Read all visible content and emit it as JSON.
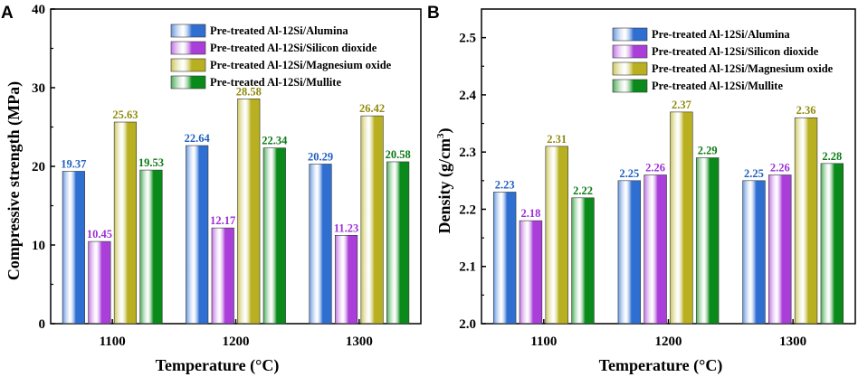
{
  "chart_data": [
    {
      "type": "bar",
      "panel": "A",
      "categories": [
        "1100",
        "1200",
        "1300"
      ],
      "series": [
        {
          "name": "Pre-treated Al-12Si/Alumina",
          "color": "#2f6fd1",
          "values": [
            19.37,
            22.64,
            20.29
          ],
          "labels": [
            "19.37",
            "22.64",
            "20.29"
          ]
        },
        {
          "name": "Pre-treated Al-12Si/Silicon dioxide",
          "color": "#a93fd8",
          "values": [
            10.45,
            12.17,
            11.23
          ],
          "labels": [
            "10.45",
            "12.17",
            "11.23"
          ]
        },
        {
          "name": "Pre-treated Al-12Si/Magnesium oxide",
          "color": "#b8b020",
          "values": [
            25.63,
            28.58,
            26.42
          ],
          "labels": [
            "25.63",
            "28.58",
            "26.42"
          ]
        },
        {
          "name": "Pre-treated Al-12Si/Mullite",
          "color": "#0a8a1a",
          "values": [
            19.53,
            22.34,
            20.58
          ],
          "labels": [
            "19.53",
            "22.34",
            "20.58"
          ]
        }
      ],
      "xlabel": "Temperature (°C)",
      "ylabel": "Compressive strength (MPa)",
      "ylim": [
        0,
        40
      ],
      "yticks": [
        0,
        10,
        20,
        30,
        40
      ],
      "ytick_labels": [
        "0",
        "10",
        "20",
        "30",
        "40"
      ],
      "legend": "top-right",
      "grid": false
    },
    {
      "type": "bar",
      "panel": "B",
      "categories": [
        "1100",
        "1200",
        "1300"
      ],
      "series": [
        {
          "name": "Pre-treated Al-12Si/Alumina",
          "color": "#2f6fd1",
          "values": [
            2.23,
            2.25,
            2.25
          ],
          "labels": [
            "2.23",
            "2.25",
            "2.25"
          ]
        },
        {
          "name": "Pre-treated Al-12Si/Silicon dioxide",
          "color": "#a93fd8",
          "values": [
            2.18,
            2.26,
            2.26
          ],
          "labels": [
            "2.18",
            "2.26",
            "2.26"
          ]
        },
        {
          "name": "Pre-treated Al-12Si/Magnesium oxide",
          "color": "#b8b020",
          "values": [
            2.31,
            2.37,
            2.36
          ],
          "labels": [
            "2.31",
            "2.37",
            "2.36"
          ]
        },
        {
          "name": "Pre-treated Al-12Si/Mullite",
          "color": "#0a8a1a",
          "values": [
            2.22,
            2.29,
            2.28
          ],
          "labels": [
            "2.22",
            "2.29",
            "2.28"
          ]
        }
      ],
      "xlabel": "Temperature (°C)",
      "ylabel": "Density (g/cm",
      "ylabel_sup": "3",
      "ylabel_end": ")",
      "ylim": [
        2.0,
        2.55
      ],
      "yticks": [
        2.0,
        2.1,
        2.2,
        2.3,
        2.4,
        2.5
      ],
      "ytick_labels": [
        "2.0",
        "2.1",
        "2.2",
        "2.3",
        "2.4",
        "2.5"
      ],
      "legend": "top-right",
      "grid": false
    }
  ],
  "value_label_colors": [
    "#1f5fbf",
    "#9b2fd6",
    "#8f8a10",
    "#0a7a14"
  ]
}
